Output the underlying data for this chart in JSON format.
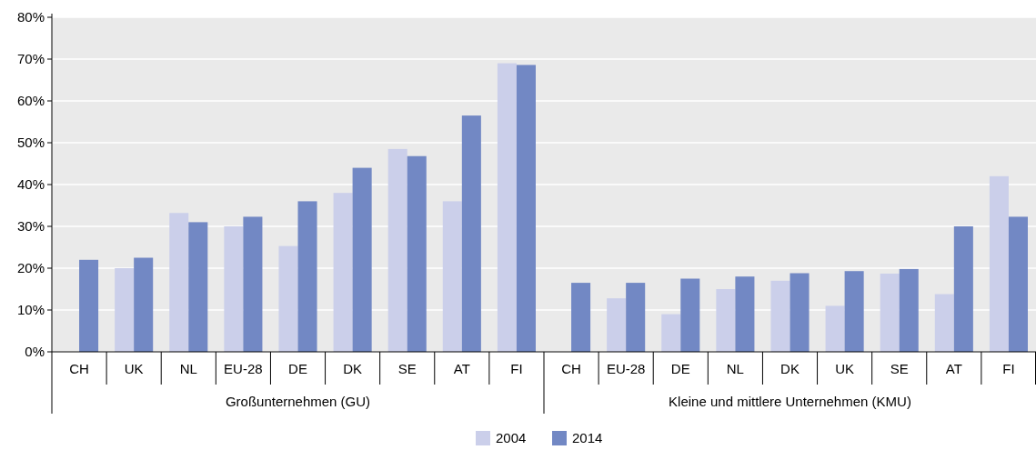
{
  "chart_data": {
    "type": "bar",
    "categories": [
      "CH",
      "UK",
      "NL",
      "EU-28",
      "DE",
      "DK",
      "SE",
      "AT",
      "FI",
      "CH",
      "EU-28",
      "DE",
      "NL",
      "DK",
      "UK",
      "SE",
      "AT",
      "FI"
    ],
    "series": [
      {
        "name": "2004",
        "color": "#cbcfea",
        "values": [
          null,
          20,
          33.2,
          30,
          25.3,
          38,
          48.5,
          36,
          69,
          null,
          12.8,
          9,
          15,
          17,
          11,
          18.7,
          13.8,
          42
        ]
      },
      {
        "name": "2014",
        "color": "#7288c4",
        "values": [
          22,
          22.5,
          31,
          32.3,
          36,
          44,
          46.8,
          56.5,
          68.6,
          16.5,
          16.5,
          17.5,
          18,
          18.8,
          19.3,
          19.8,
          30,
          32.3
        ]
      }
    ],
    "ylim": [
      0,
      80
    ],
    "yticks": [
      {
        "value": 0,
        "label": "0%"
      },
      {
        "value": 10,
        "label": "10%"
      },
      {
        "value": 20,
        "label": "20%"
      },
      {
        "value": 30,
        "label": "30%"
      },
      {
        "value": 40,
        "label": "40%"
      },
      {
        "value": 50,
        "label": "50%"
      },
      {
        "value": 60,
        "label": "60%"
      },
      {
        "value": 70,
        "label": "70%"
      },
      {
        "value": 80,
        "label": "80%"
      }
    ],
    "grid": "y",
    "legend": "bottom",
    "annotations": [
      "Großunternehmen (GU)",
      "Kleine und mittlere Unternehmen (KMU)"
    ]
  }
}
